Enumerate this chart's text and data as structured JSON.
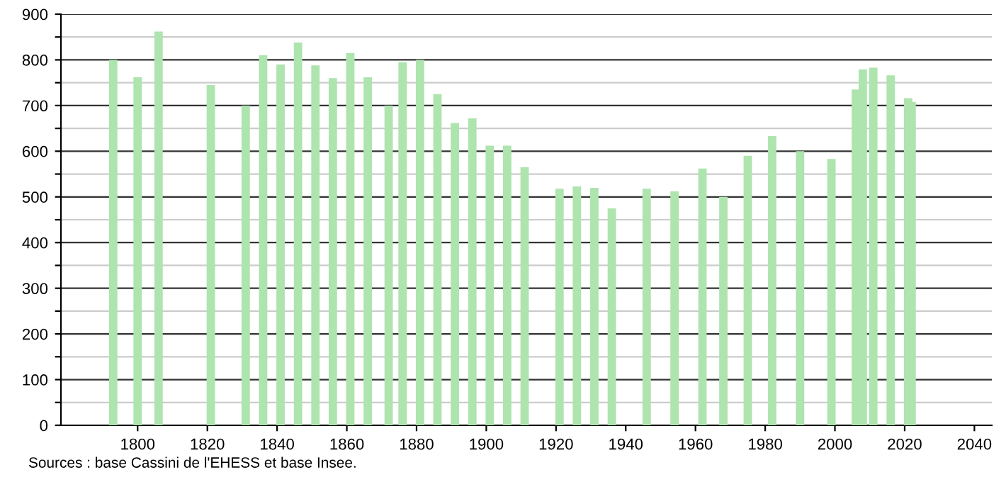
{
  "chart_data": {
    "type": "bar",
    "x": [
      1793,
      1800,
      1806,
      1821,
      1831,
      1836,
      1841,
      1846,
      1851,
      1856,
      1861,
      1866,
      1872,
      1876,
      1881,
      1886,
      1891,
      1896,
      1901,
      1906,
      1911,
      1921,
      1926,
      1931,
      1936,
      1946,
      1954,
      1962,
      1968,
      1975,
      1982,
      1990,
      1999,
      2006,
      2008,
      2011,
      2016,
      2021,
      2022
    ],
    "values": [
      800,
      762,
      862,
      745,
      700,
      810,
      790,
      838,
      788,
      760,
      815,
      762,
      700,
      795,
      800,
      725,
      662,
      672,
      612,
      612,
      565,
      518,
      523,
      520,
      475,
      518,
      512,
      562,
      500,
      590,
      633,
      600,
      583,
      735,
      779,
      783,
      766,
      716,
      708
    ],
    "color": "#aee4ae",
    "xlim": [
      1778,
      2045
    ],
    "xticks": [
      1800,
      1820,
      1840,
      1860,
      1880,
      1900,
      1920,
      1940,
      1960,
      1980,
      2000,
      2020,
      2040
    ],
    "ylim": [
      0,
      900
    ],
    "yticks": [
      0,
      {
        "value": 50,
        "label": null
      },
      100,
      {
        "value": 150,
        "label": null
      },
      200,
      {
        "value": 250,
        "label": null
      },
      300,
      {
        "value": 350,
        "label": null
      },
      400,
      {
        "value": 450,
        "label": null
      },
      500,
      {
        "value": 550,
        "label": null
      },
      600,
      {
        "value": 650,
        "label": null
      },
      700,
      {
        "value": 750,
        "label": null
      },
      800,
      {
        "value": 850,
        "label": null
      },
      900
    ],
    "grid": "y",
    "annotations": [
      "Sources : base Cassini de l'EHESS et base Insee."
    ]
  }
}
